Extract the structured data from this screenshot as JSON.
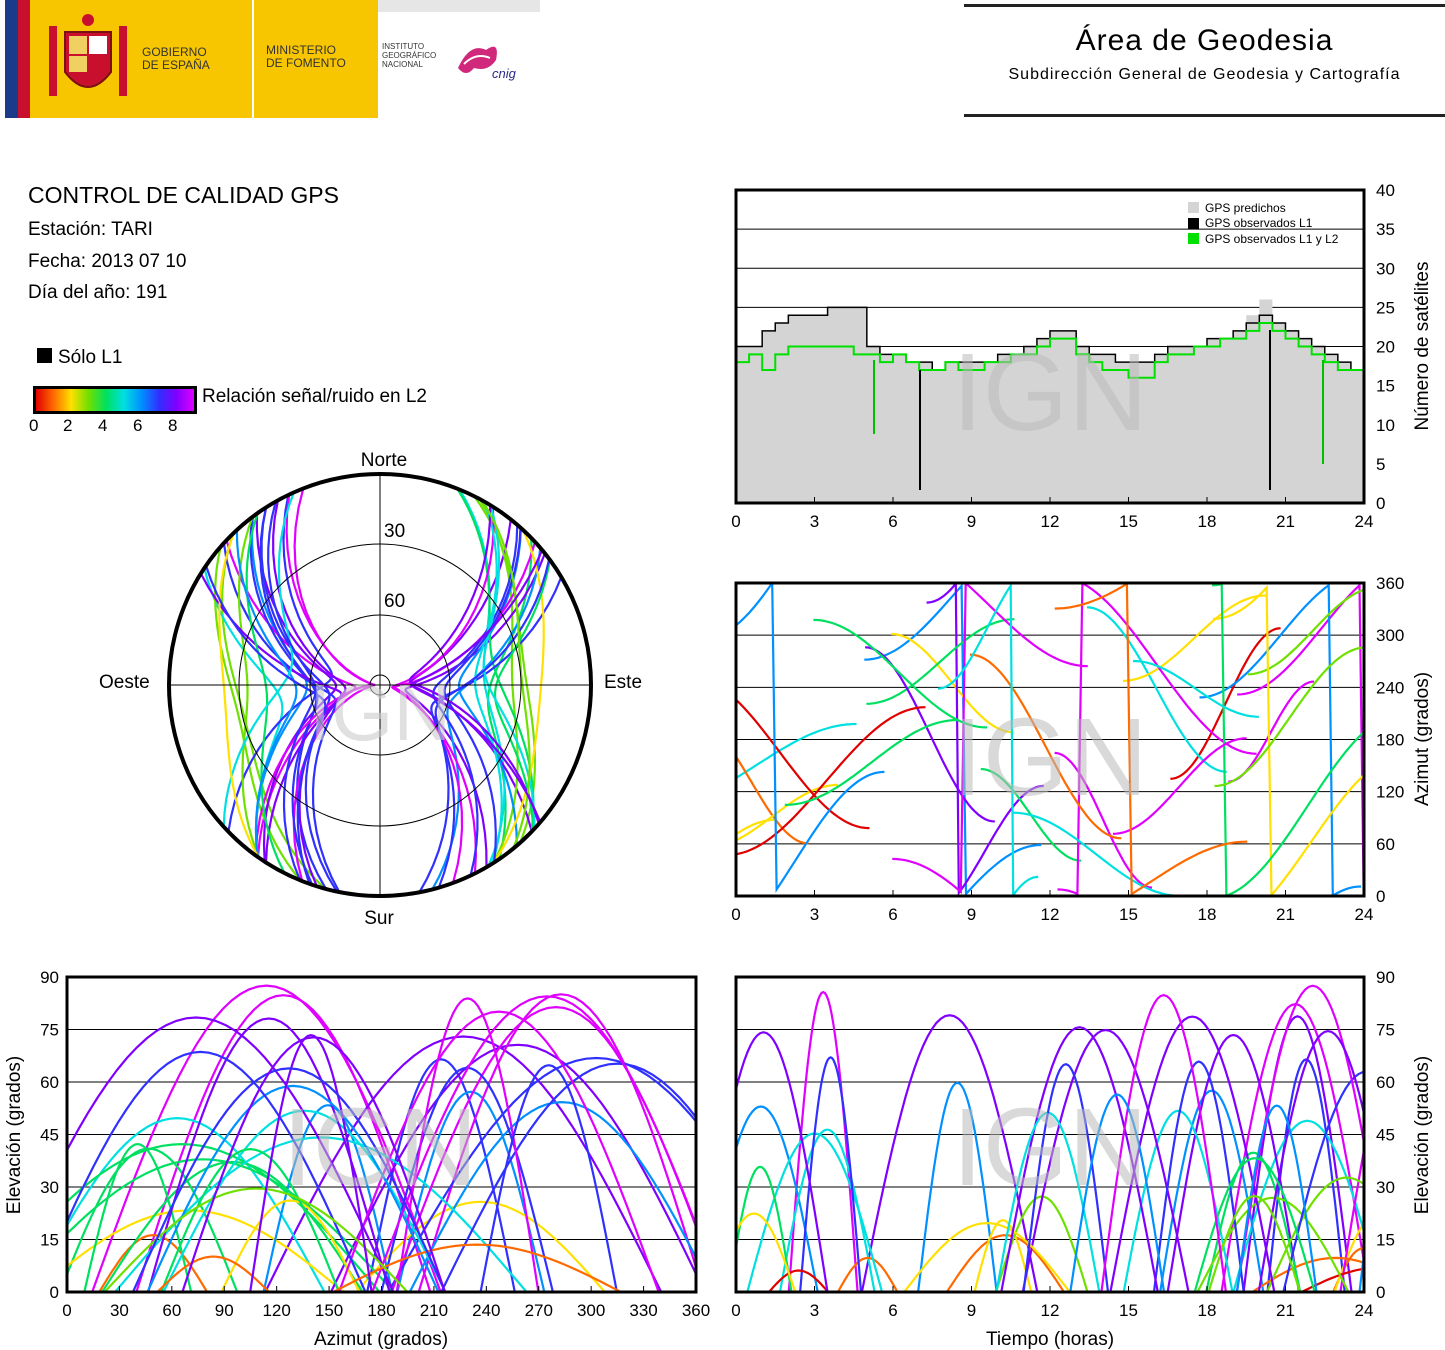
{
  "header": {
    "gov_line1": "GOBIERNO",
    "gov_line2": "DE ESPAÑA",
    "min_line1": "MINISTERIO",
    "min_line2": "DE FOMENTO",
    "ign_line1": "INSTITUTO",
    "ign_line2": "GEOGRÁFICO",
    "ign_line3": "NACIONAL",
    "cnig": "cnig",
    "area_title": "Área de Geodesia",
    "area_subtitle": "Subdirección General de Geodesia y Cartografía"
  },
  "info": {
    "title": "CONTROL DE CALIDAD GPS",
    "station": "Estación: TARI",
    "date": "Fecha: 2013 07 10",
    "doy": "Día del año: 191"
  },
  "legend": {
    "l1_only": "Sólo L1",
    "snr_label": "Relación señal/ruido en L2",
    "snr_ticks": [
      "0",
      "2",
      "4",
      "6",
      "8"
    ],
    "colors": [
      "#e00000",
      "#ff6a00",
      "#ffe000",
      "#6fe000",
      "#00e060",
      "#00e0e0",
      "#0090ff",
      "#3030ff",
      "#8000ff",
      "#e000ff"
    ]
  },
  "watermark": "IGN",
  "chart_data": [
    {
      "type": "area",
      "id": "satellites",
      "ylabel": "Número de satélites",
      "xlim": [
        0,
        24
      ],
      "ylim": [
        0,
        40
      ],
      "xticks": [
        0,
        3,
        6,
        9,
        12,
        15,
        18,
        21,
        24
      ],
      "yticks": [
        0,
        5,
        10,
        15,
        20,
        25,
        30,
        35,
        40
      ],
      "grid": true,
      "legend_position": "top-right",
      "series": [
        {
          "name": "GPS predichos",
          "color": "#d4d4d4",
          "x": [
            0,
            0.5,
            1,
            1.5,
            2,
            2.5,
            3,
            3.5,
            4,
            4.5,
            5,
            5.5,
            6,
            6.5,
            7,
            7.5,
            8,
            8.5,
            9,
            9.5,
            10,
            10.5,
            11,
            11.5,
            12,
            12.5,
            13,
            13.5,
            14,
            14.5,
            15,
            15.5,
            16,
            16.5,
            17,
            17.5,
            18,
            18.5,
            19,
            19.5,
            20,
            20.5,
            21,
            21.5,
            22,
            22.5,
            23,
            23.5,
            24
          ],
          "values": [
            20,
            20,
            22,
            23,
            24,
            24,
            24,
            25,
            25,
            25,
            20,
            19,
            19,
            18,
            18,
            17,
            18,
            18,
            18,
            18,
            19,
            19,
            20,
            21,
            22,
            22,
            20,
            19,
            19,
            18,
            18,
            18,
            19,
            20,
            20,
            20,
            21,
            21,
            22,
            24,
            26,
            23,
            22,
            21,
            20,
            19,
            18,
            17,
            19
          ]
        },
        {
          "name": "GPS observados L1",
          "color": "#000000",
          "x": [
            0,
            0.5,
            1,
            1.5,
            2,
            2.5,
            3,
            3.5,
            4,
            4.5,
            5,
            5.5,
            6,
            6.5,
            7,
            7.5,
            8,
            8.5,
            9,
            9.5,
            10,
            10.5,
            11,
            11.5,
            12,
            12.5,
            13,
            13.5,
            14,
            14.5,
            15,
            15.5,
            16,
            16.5,
            17,
            17.5,
            18,
            18.5,
            19,
            19.5,
            20,
            20.5,
            21,
            21.5,
            22,
            22.5,
            23,
            23.5,
            24
          ],
          "values": [
            20,
            20,
            22,
            23,
            24,
            24,
            24,
            25,
            25,
            25,
            20,
            19,
            19,
            18,
            18,
            17,
            18,
            18,
            18,
            18,
            19,
            19,
            20,
            21,
            22,
            22,
            20,
            19,
            19,
            18,
            18,
            18,
            19,
            20,
            20,
            20,
            21,
            21,
            22,
            23,
            24,
            23,
            22,
            21,
            20,
            19,
            18,
            17,
            19
          ]
        },
        {
          "name": "GPS observados L1 y L2",
          "color": "#00e000",
          "x": [
            0,
            0.5,
            1,
            1.5,
            2,
            2.5,
            3,
            3.5,
            4,
            4.5,
            5,
            5.5,
            6,
            6.5,
            7,
            7.5,
            8,
            8.5,
            9,
            9.5,
            10,
            10.5,
            11,
            11.5,
            12,
            12.5,
            13,
            13.5,
            14,
            14.5,
            15,
            15.5,
            16,
            16.5,
            17,
            17.5,
            18,
            18.5,
            19,
            19.5,
            20,
            20.5,
            21,
            21.5,
            22,
            22.5,
            23,
            23.5,
            24
          ],
          "values": [
            18,
            19,
            17,
            19,
            20,
            20,
            20,
            20,
            20,
            19,
            19,
            18,
            19,
            18,
            17,
            17,
            18,
            17,
            17,
            18,
            18,
            19,
            19,
            20,
            21,
            21,
            19,
            18,
            17,
            17,
            16,
            16,
            18,
            19,
            19,
            20,
            20,
            21,
            21,
            22,
            23,
            22,
            21,
            20,
            19,
            18,
            17,
            17,
            18
          ]
        }
      ]
    },
    {
      "type": "scatter",
      "id": "azimuth-time",
      "ylabel": "Azimut (grados)",
      "xlim": [
        0,
        24
      ],
      "ylim": [
        0,
        360
      ],
      "xticks": [
        0,
        3,
        6,
        9,
        12,
        15,
        18,
        21,
        24
      ],
      "yticks": [
        0,
        60,
        120,
        180,
        240,
        300,
        360
      ],
      "grid": true
    },
    {
      "type": "scatter",
      "id": "skyplot",
      "compass": [
        "Norte",
        "Sur",
        "Este",
        "Oeste"
      ],
      "rings": [
        "30",
        "60"
      ]
    },
    {
      "type": "scatter",
      "id": "elev-azimuth",
      "xlabel": "Azimut (grados)",
      "ylabel": "Elevación (grados)",
      "xlim": [
        0,
        360
      ],
      "ylim": [
        0,
        90
      ],
      "xticks": [
        0,
        30,
        60,
        90,
        120,
        150,
        180,
        210,
        240,
        270,
        300,
        330,
        360
      ],
      "yticks": [
        0,
        15,
        30,
        45,
        60,
        75,
        90
      ],
      "grid": true
    },
    {
      "type": "scatter",
      "id": "elev-time",
      "xlabel": "Tiempo (horas)",
      "ylabel": "Elevación (grados)",
      "xlim": [
        0,
        24
      ],
      "ylim": [
        0,
        90
      ],
      "xticks": [
        0,
        3,
        6,
        9,
        12,
        15,
        18,
        21,
        24
      ],
      "yticks": [
        0,
        15,
        30,
        45,
        60,
        75,
        90
      ],
      "grid": true
    }
  ]
}
